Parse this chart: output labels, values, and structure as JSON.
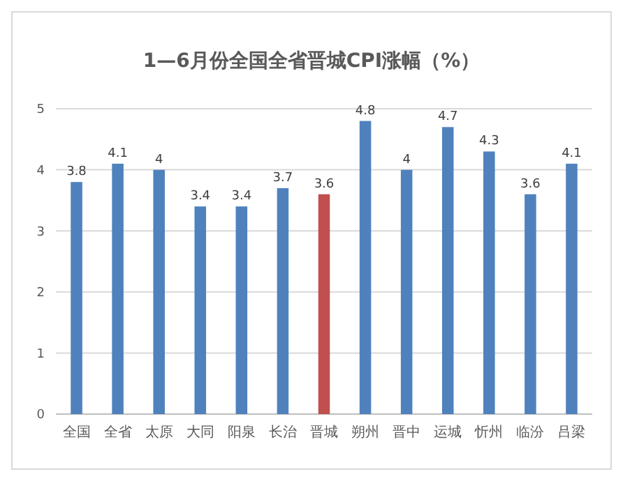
{
  "chart_data": {
    "type": "bar",
    "title": "1—6月份全国全省晋城CPI涨幅（%）",
    "categories": [
      "全国",
      "全省",
      "太原",
      "大同",
      "阳泉",
      "长治",
      "晋城",
      "朔州",
      "晋中",
      "运城",
      "忻州",
      "临汾",
      "吕梁"
    ],
    "values": [
      3.8,
      4.1,
      4,
      3.4,
      3.4,
      3.7,
      3.6,
      4.8,
      4,
      4.7,
      4.3,
      3.6,
      4.1
    ],
    "colors": [
      "#4f81bd",
      "#4f81bd",
      "#4f81bd",
      "#4f81bd",
      "#4f81bd",
      "#4f81bd",
      "#c0504d",
      "#4f81bd",
      "#4f81bd",
      "#4f81bd",
      "#4f81bd",
      "#4f81bd",
      "#4f81bd"
    ],
    "ylim": [
      0,
      5
    ],
    "yticks": [
      0,
      1,
      2,
      3,
      4,
      5
    ],
    "grid": "y",
    "data_labels": true
  }
}
